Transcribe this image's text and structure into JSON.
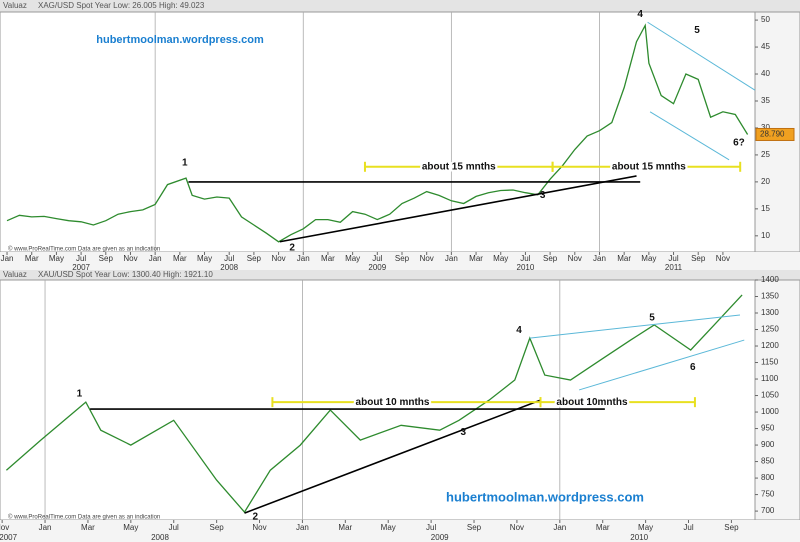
{
  "chart_data": [
    {
      "type": "line",
      "header": "Valuaz",
      "title": "XAG/USD Spot   Year Low: 26.005 High: 49.023",
      "color": "#2e8b2e",
      "x": [
        0,
        1,
        2,
        3,
        4,
        5,
        6,
        7,
        8,
        9,
        10,
        11,
        12,
        13,
        14.5,
        15,
        16,
        17,
        18,
        19,
        20,
        21,
        22,
        23,
        24,
        25,
        26,
        27,
        28,
        29,
        30,
        31,
        32,
        33,
        34,
        35,
        36,
        37,
        38,
        39,
        40,
        41,
        42,
        43,
        44,
        45,
        46,
        47,
        48,
        49,
        50,
        51,
        51.7,
        52,
        53,
        54,
        55,
        56,
        57,
        58,
        59,
        60
      ],
      "values": [
        12.8,
        13.8,
        13.5,
        13.6,
        13.2,
        12.8,
        12.6,
        12.0,
        12.8,
        14.0,
        14.5,
        14.8,
        15.8,
        19.5,
        20.7,
        17.5,
        16.8,
        17.2,
        17.0,
        13.5,
        12.0,
        10.5,
        8.9,
        10.2,
        11.3,
        13.0,
        13.0,
        12.5,
        14.5,
        14.0,
        13.0,
        14.0,
        16.0,
        17.0,
        18.2,
        17.5,
        16.5,
        16.0,
        17.3,
        18.0,
        18.4,
        18.5,
        18.0,
        17.6,
        20.5,
        23.0,
        26.0,
        28.5,
        29.5,
        31.0,
        37.5,
        46.0,
        49.0,
        42.0,
        36.0,
        34.5,
        40.0,
        39.0,
        32.0,
        33.0,
        32.5,
        28.79
      ],
      "last_value": 28.79,
      "last_value_label": "28.790",
      "xlim": [
        -0.57,
        60.6
      ],
      "ylim": [
        7,
        51.5
      ],
      "yticks": [
        10,
        15,
        20,
        25,
        30,
        35,
        40,
        45,
        50
      ],
      "xticks": [
        {
          "value": 0,
          "label": "Jan"
        },
        {
          "value": 2,
          "label": "Mar"
        },
        {
          "value": 4,
          "label": "May"
        },
        {
          "value": 6,
          "label": "Jul"
        },
        {
          "value": 8,
          "label": "Sep"
        },
        {
          "value": 10,
          "label": "Nov"
        },
        {
          "value": 12,
          "label": "Jan"
        },
        {
          "value": 14,
          "label": "Mar"
        },
        {
          "value": 16,
          "label": "May"
        },
        {
          "value": 18,
          "label": "Jul"
        },
        {
          "value": 20,
          "label": "Sep"
        },
        {
          "value": 22,
          "label": "Nov"
        },
        {
          "value": 24,
          "label": "Jan"
        },
        {
          "value": 26,
          "label": "Mar"
        },
        {
          "value": 28,
          "label": "May"
        },
        {
          "value": 30,
          "label": "Jul"
        },
        {
          "value": 32,
          "label": "Sep"
        },
        {
          "value": 34,
          "label": "Nov"
        },
        {
          "value": 36,
          "label": "Jan"
        },
        {
          "value": 38,
          "label": "Mar"
        },
        {
          "value": 40,
          "label": "May"
        },
        {
          "value": 42,
          "label": "Jul"
        },
        {
          "value": 44,
          "label": "Sep"
        },
        {
          "value": 46,
          "label": "Nov"
        },
        {
          "value": 48,
          "label": "Jan"
        },
        {
          "value": 50,
          "label": "Mar"
        },
        {
          "value": 52,
          "label": "May"
        },
        {
          "value": 54,
          "label": "Jul"
        },
        {
          "value": 56,
          "label": "Sep"
        },
        {
          "value": 58,
          "label": "Nov"
        }
      ],
      "year_ticks": [
        {
          "value": 6,
          "label": "2007"
        },
        {
          "value": 18,
          "label": "2008"
        },
        {
          "value": 30,
          "label": "2009"
        },
        {
          "value": 42,
          "label": "2010"
        },
        {
          "value": 54,
          "label": "2011"
        }
      ],
      "year_grid": [
        12,
        24,
        36,
        48
      ],
      "trendlines": [
        {
          "x": [
            14.7,
            51.3
          ],
          "y": [
            20.0,
            20.0
          ],
          "color": "#000000"
        },
        {
          "x": [
            22.1,
            51.0
          ],
          "y": [
            8.9,
            21.1
          ],
          "color": "#000000"
        },
        {
          "x": [
            51.9,
            60.6
          ],
          "y": [
            49.6,
            37.0
          ],
          "color": "#5bb8d8"
        },
        {
          "x": [
            52.1,
            58.5
          ],
          "y": [
            33.0,
            24.1
          ],
          "color": "#5bb8d8"
        }
      ],
      "arrows": [
        {
          "x": [
            29,
            44.2
          ],
          "y": 22.8,
          "color": "#e8e020"
        },
        {
          "x": [
            44.2,
            59.4
          ],
          "y": 22.8,
          "color": "#e8e020"
        }
      ],
      "annotations": [
        {
          "text": "1",
          "x": 14.4,
          "y": 23.5
        },
        {
          "text": "2",
          "x": 23.1,
          "y": 7.8
        },
        {
          "text": "3",
          "x": 43.4,
          "y": 17.5
        },
        {
          "text": "4",
          "x": 51.3,
          "y": 51.1
        },
        {
          "text": "5",
          "x": 55.9,
          "y": 48.1
        },
        {
          "text": "6?",
          "x": 59.3,
          "y": 27.2
        }
      ],
      "arrow_labels": [
        {
          "text": "about 15 mnths",
          "x": 36.6,
          "y": 22.8
        },
        {
          "text": "about 15 mnths",
          "x": 52.0,
          "y": 22.8
        }
      ],
      "watermark": "hubertmoolman.wordpress.com",
      "footer": "© www.ProRealTime.com Data are given as an indication"
    },
    {
      "type": "line",
      "header": "Valuaz",
      "title": "XAU/USD Spot   Year Low: 1300.40 High: 1921.10",
      "color": "#2e8b2e",
      "x": [
        -1.8,
        -0.2,
        1.9,
        2.6,
        4,
        6,
        8,
        9.3,
        10.5,
        11.9,
        13.3,
        14.7,
        16.6,
        18.4,
        19.3,
        20.7,
        21.9,
        22.6,
        23.3,
        24.5,
        25.9,
        27.3,
        28.4,
        30.1,
        31.2,
        32.5
      ],
      "values": [
        824,
        915,
        1030,
        945,
        900,
        975,
        794,
        697,
        824,
        900,
        1006,
        915,
        960,
        945,
        975,
        1036,
        1097,
        1224,
        1112,
        1097,
        1158,
        1218,
        1264,
        1188,
        1264,
        1355
      ],
      "xlim": [
        -2.1,
        33.1
      ],
      "ylim": [
        673,
        1400
      ],
      "yticks": [
        700,
        750,
        800,
        850,
        900,
        950,
        1000,
        1050,
        1100,
        1150,
        1200,
        1250,
        1300,
        1350,
        1400
      ],
      "xticks": [
        {
          "value": -2,
          "label": "Nov"
        },
        {
          "value": 0,
          "label": "Jan"
        },
        {
          "value": 2,
          "label": "Mar"
        },
        {
          "value": 4,
          "label": "May"
        },
        {
          "value": 6,
          "label": "Jul"
        },
        {
          "value": 8,
          "label": "Sep"
        },
        {
          "value": 10,
          "label": "Nov"
        },
        {
          "value": 12,
          "label": "Jan"
        },
        {
          "value": 14,
          "label": "Mar"
        },
        {
          "value": 16,
          "label": "May"
        },
        {
          "value": 18,
          "label": "Jul"
        },
        {
          "value": 20,
          "label": "Sep"
        },
        {
          "value": 22,
          "label": "Nov"
        },
        {
          "value": 24,
          "label": "Jan"
        },
        {
          "value": 26,
          "label": "Mar"
        },
        {
          "value": 28,
          "label": "May"
        },
        {
          "value": 30,
          "label": "Jul"
        },
        {
          "value": 32,
          "label": "Sep"
        }
      ],
      "year_ticks": [
        {
          "value": -1.72,
          "label": "2007"
        },
        {
          "value": 5.36,
          "label": "2008"
        },
        {
          "value": 18.4,
          "label": "2009"
        },
        {
          "value": 27.7,
          "label": "2010"
        }
      ],
      "year_grid": [
        0,
        12,
        24
      ],
      "trendlines": [
        {
          "x": [
            2.1,
            26.1
          ],
          "y": [
            1009,
            1009
          ],
          "color": "#000000"
        },
        {
          "x": [
            9.3,
            23.1
          ],
          "y": [
            694,
            1036
          ],
          "color": "#000000"
        },
        {
          "x": [
            22.6,
            32.4
          ],
          "y": [
            1224,
            1294
          ],
          "color": "#5bb8d8"
        },
        {
          "x": [
            24.9,
            32.6
          ],
          "y": [
            1067,
            1218
          ],
          "color": "#5bb8d8"
        }
      ],
      "arrows": [
        {
          "x": [
            10.6,
            23.1
          ],
          "y": 1030,
          "color": "#e8e020"
        },
        {
          "x": [
            23.1,
            30.3
          ],
          "y": 1030,
          "color": "#e8e020"
        }
      ],
      "annotations": [
        {
          "text": "1",
          "x": 1.6,
          "y": 1055
        },
        {
          "text": "2",
          "x": 9.8,
          "y": 682
        },
        {
          "text": "3",
          "x": 19.5,
          "y": 939
        },
        {
          "text": "4",
          "x": 22.1,
          "y": 1248
        },
        {
          "text": "5",
          "x": 28.3,
          "y": 1285
        },
        {
          "text": "6",
          "x": 30.2,
          "y": 1136
        }
      ],
      "arrow_labels": [
        {
          "text": "about 10 mnths",
          "x": 16.2,
          "y": 1030
        },
        {
          "text": "about 10mnths",
          "x": 25.5,
          "y": 1030
        }
      ],
      "watermark": "hubertmoolman.wordpress.com",
      "footer": "© www.ProRealTime.com Data are given as an indication"
    }
  ]
}
